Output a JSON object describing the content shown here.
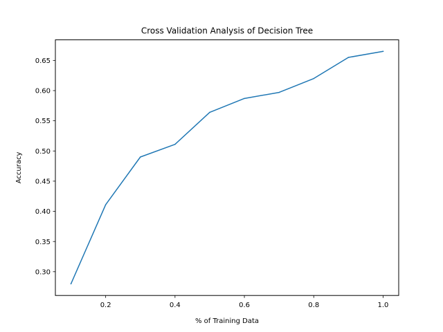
{
  "chart_data": {
    "type": "line",
    "title": "Cross Validation Analysis of Decision Tree",
    "xlabel": "% of Training Data",
    "ylabel": "Accuracy",
    "xlim": [
      0.055,
      1.045
    ],
    "ylim": [
      0.2606,
      0.6841
    ],
    "xticks": [
      0.2,
      0.4,
      0.6,
      0.8,
      1.0
    ],
    "xtick_labels": [
      "0.2",
      "0.4",
      "0.6",
      "0.8",
      "1.0"
    ],
    "yticks": [
      0.3,
      0.35,
      0.4,
      0.45,
      0.5,
      0.55,
      0.6,
      0.65
    ],
    "ytick_labels": [
      "0.30",
      "0.35",
      "0.40",
      "0.45",
      "0.50",
      "0.55",
      "0.60",
      "0.65"
    ],
    "grid": false,
    "series": [
      {
        "color": "#1f77b4",
        "x": [
          0.1,
          0.2,
          0.3,
          0.4,
          0.5,
          0.6,
          0.7,
          0.8,
          0.9,
          1.0
        ],
        "y": [
          0.28,
          0.411,
          0.49,
          0.511,
          0.564,
          0.587,
          0.597,
          0.62,
          0.655,
          0.665
        ]
      }
    ]
  }
}
